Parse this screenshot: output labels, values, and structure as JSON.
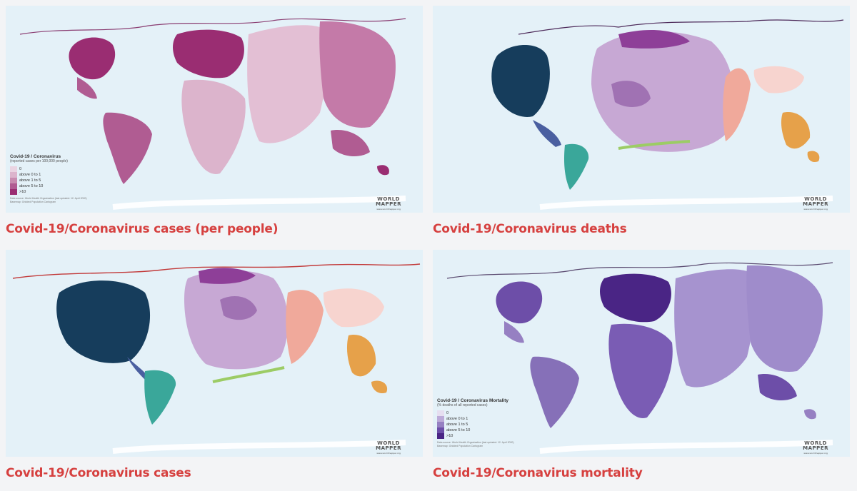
{
  "maps": [
    {
      "id": "cases-per-people",
      "caption": "Covid-19/Coronavirus cases (per people)",
      "legend": {
        "title": "Covid-19 / Coronavirus",
        "subtitle": "(reported cases per 100,000 people)",
        "entries": [
          {
            "label": "0",
            "color": "#ead4e2"
          },
          {
            "label": "above 0 to 1",
            "color": "#dcb4cc"
          },
          {
            "label": "above 1 to 5",
            "color": "#c88cb0"
          },
          {
            "label": "above 5 to 10",
            "color": "#b05c92"
          },
          {
            "label": ">10",
            "color": "#9a2d72"
          }
        ]
      },
      "source": "Data source: World Health Organization (last updated: 12. April 2020) Basemap: Gridded Population Cartogram",
      "logo": {
        "line1": "WORLD",
        "line2": "MAPPER",
        "url": "www.worldmapper.org"
      }
    },
    {
      "id": "deaths",
      "caption": "Covid-19/Coronavirus deaths",
      "legend": null,
      "source": "",
      "logo": {
        "line1": "WORLD",
        "line2": "MAPPER",
        "url": "www.worldmapper.org"
      }
    },
    {
      "id": "cases",
      "caption": "Covid-19/Coronavirus cases",
      "legend": null,
      "source": "",
      "logo": {
        "line1": "WORLD",
        "line2": "MAPPER",
        "url": "www.worldmapper.org"
      }
    },
    {
      "id": "mortality",
      "caption": "Covid-19/Coronavirus mortality",
      "legend": {
        "title": "Covid-19 / Coronavirus Mortality",
        "subtitle": "(% deaths of all reported cases)",
        "entries": [
          {
            "label": "0",
            "color": "#e6def0"
          },
          {
            "label": "above 0 to 1",
            "color": "#bcaad8"
          },
          {
            "label": "above 1 to 5",
            "color": "#9680c2"
          },
          {
            "label": "above 5 to 10",
            "color": "#6d4ea8"
          },
          {
            "label": ">10",
            "color": "#4a2585"
          }
        ]
      },
      "source": "Data source: World Health Organization (last updated: 12. April 2020) Basemap: Gridded Population Cartogram",
      "logo": {
        "line1": "WORLD",
        "line2": "MAPPER",
        "url": "www.worldmapper.org"
      }
    }
  ]
}
